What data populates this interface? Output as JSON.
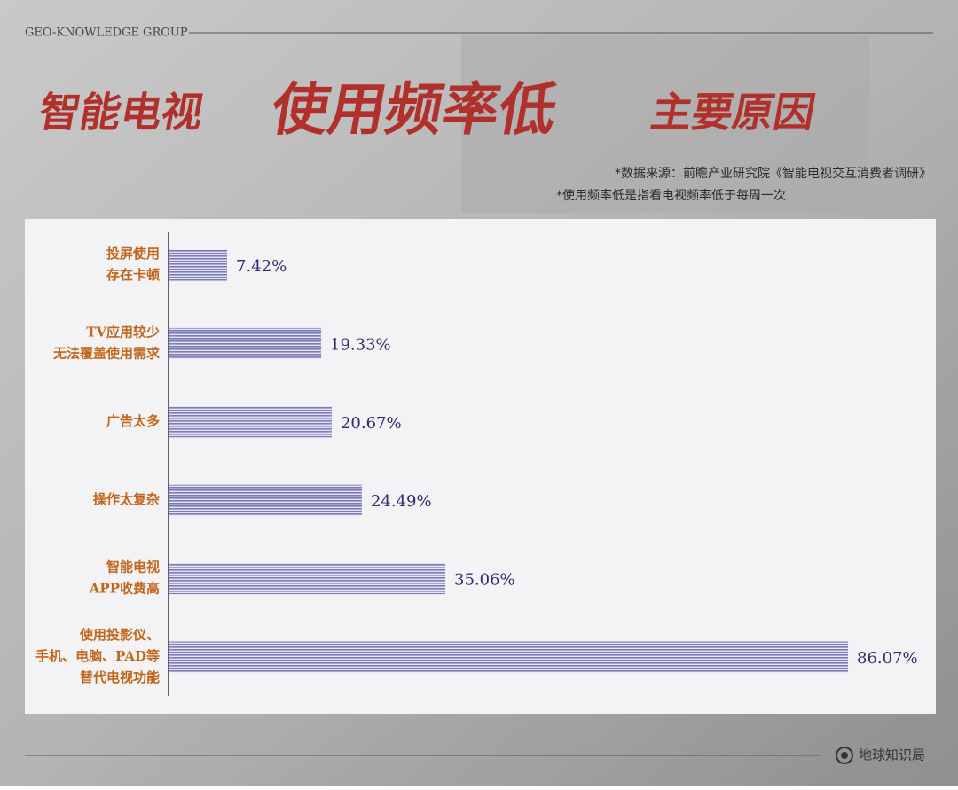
{
  "header": {
    "brand": "GEO-KNOWLEDGE GROUP",
    "footer": "地球知识局"
  },
  "chart_data": {
    "type": "bar",
    "orientation": "horizontal",
    "title_parts": [
      "智能电视",
      "使用频率低",
      "主要原因"
    ],
    "notes": [
      "*数据来源：前瞻产业研究院《智能电视交互消费者调研》",
      "*使用频率低是指看电视频率低于每周一次"
    ],
    "categories": [
      [
        "投屏使用",
        "存在卡顿"
      ],
      [
        "TV应用较少",
        "无法覆盖使用需求"
      ],
      [
        "广告太多"
      ],
      [
        "操作太复杂"
      ],
      [
        "智能电视",
        "APP收费高"
      ],
      [
        "使用投影仪、",
        "手机、电脑、PAD等",
        "替代电视功能"
      ]
    ],
    "values": [
      7.42,
      19.33,
      20.67,
      24.49,
      35.06,
      86.07
    ],
    "value_labels": [
      "7.42%",
      "19.33%",
      "20.67%",
      "24.49%",
      "35.06%",
      "86.07%"
    ],
    "color": "#7d7ab9",
    "label_color": "#c0651a",
    "value_label_color": "#2e2b70",
    "xlim": [
      0,
      90
    ]
  }
}
